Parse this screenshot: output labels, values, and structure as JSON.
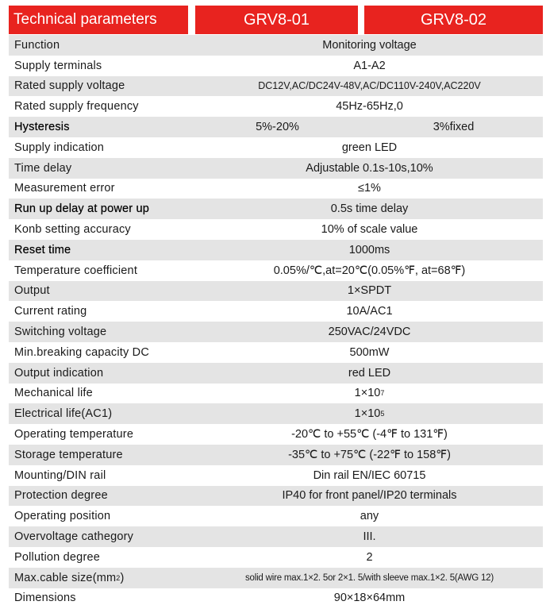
{
  "header": {
    "technical": "Technical parameters",
    "model1": "GRV8-01",
    "model2": "GRV8-02"
  },
  "rows": [
    {
      "label": "Function",
      "value": "Monitoring voltage"
    },
    {
      "label": "Supply terminals",
      "value": "A1-A2"
    },
    {
      "label": "Rated supply voltage",
      "value": "DC12V,AC/DC24V-48V,AC/DC110V-240V,AC220V"
    },
    {
      "label": "Rated supply frequency",
      "value": "45Hz-65Hz,0"
    },
    {
      "label": "Hysteresis",
      "value1": "5%-20%",
      "value2": "3%fixed"
    },
    {
      "label": "Supply indication",
      "value": "green LED"
    },
    {
      "label": "Time delay",
      "value": "Adjustable 0.1s-10s,10%"
    },
    {
      "label": "Measurement error",
      "value": "≤1%"
    },
    {
      "label": "Run up delay at power up",
      "value": "0.5s time delay"
    },
    {
      "label": "Konb setting accuracy",
      "value": "10% of scale value"
    },
    {
      "label": "Reset time",
      "value": "1000ms"
    },
    {
      "label": "Temperature coefficient",
      "value": "0.05%/℃,at=20℃(0.05%℉, at=68℉)"
    },
    {
      "label": "Output",
      "value": "1×SPDT"
    },
    {
      "label": "Current rating",
      "value": "10A/AC1"
    },
    {
      "label": "Switching voltage",
      "value": "250VAC/24VDC"
    },
    {
      "label": "Min.breaking capacity DC",
      "value": "500mW"
    },
    {
      "label": "Output indication",
      "value": "red LED"
    },
    {
      "label": "Mechanical life",
      "value": "1×10",
      "sup": "7"
    },
    {
      "label": "Electrical life(AC1)",
      "value": "1×10",
      "sup": "5"
    },
    {
      "label": "Operating temperature",
      "value": "-20℃ to +55℃ (-4℉ to 131℉)"
    },
    {
      "label": "Storage temperature",
      "value": "-35℃ to +75℃ (-22℉ to 158℉)"
    },
    {
      "label": "Mounting/DIN rail",
      "value": "Din rail EN/IEC 60715"
    },
    {
      "label": "Protection degree",
      "value": "IP40 for front panel/IP20 terminals"
    },
    {
      "label": "Operating position",
      "value": "any"
    },
    {
      "label": "Overvoltage cathegory",
      "value": "III."
    },
    {
      "label": "Pollution degree",
      "value": "2"
    },
    {
      "label": "Max.cable size(mm",
      "label_sup": "2",
      "label_end": ")",
      "value": "solid wire max.1×2. 5or 2×1. 5/with sleeve max.1×2. 5(AWG 12)"
    },
    {
      "label": "Dimensions",
      "value": "90×18×64mm"
    }
  ]
}
